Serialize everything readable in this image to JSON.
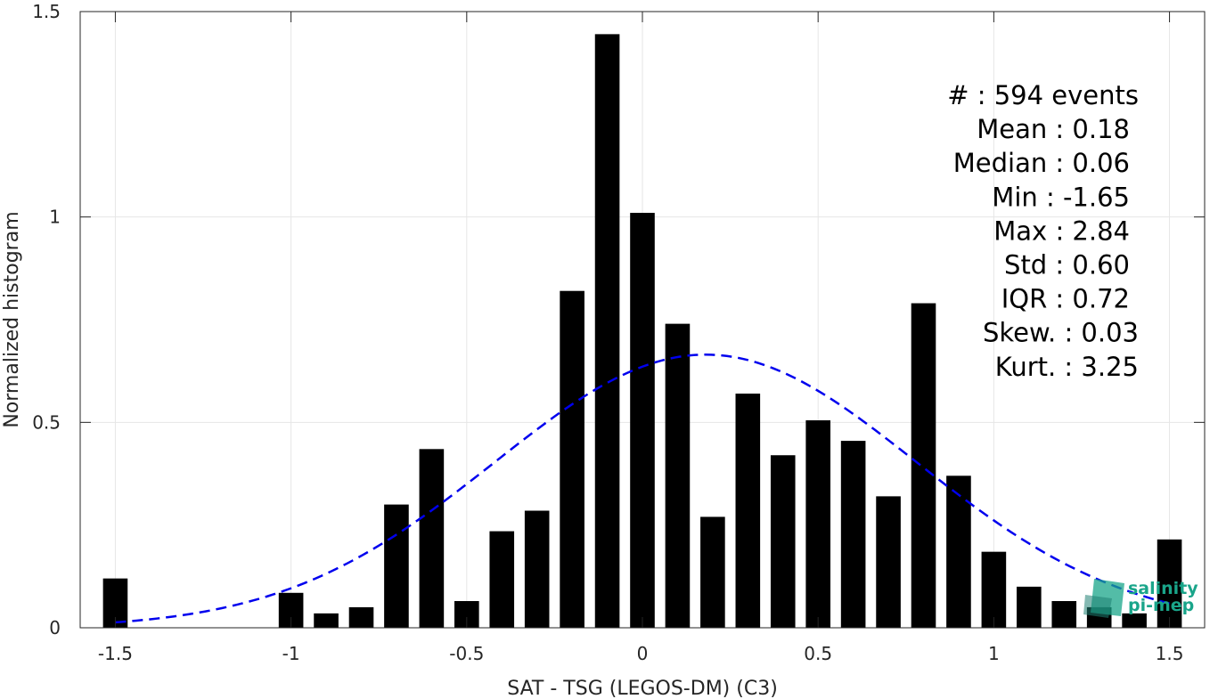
{
  "chart_data": {
    "type": "bar",
    "xlabel": "SAT - TSG (LEGOS-DM) (C3)",
    "ylabel": "Normalized histogram",
    "xlim": [
      -1.6,
      1.6
    ],
    "ylim": [
      0,
      1.5
    ],
    "x_ticks": [
      -1.5,
      -1,
      -0.5,
      0,
      0.5,
      1,
      1.5
    ],
    "x_tick_labels": [
      "-1.5",
      "-1",
      "-0.5",
      "0",
      "0.5",
      "1",
      "1.5"
    ],
    "y_ticks": [
      0,
      0.5,
      1,
      1.5
    ],
    "y_tick_labels": [
      "0",
      "0.5",
      "1",
      "1.5"
    ],
    "grid": true,
    "bar_width": 0.07,
    "bar_color": "#000000",
    "bins": [
      -1.5,
      -1.0,
      -0.9,
      -0.8,
      -0.7,
      -0.6,
      -0.5,
      -0.4,
      -0.3,
      -0.2,
      -0.1,
      0.0,
      0.1,
      0.2,
      0.3,
      0.4,
      0.5,
      0.6,
      0.7,
      0.8,
      0.9,
      1.0,
      1.1,
      1.2,
      1.3,
      1.4,
      1.5
    ],
    "values": [
      0.12,
      0.085,
      0.035,
      0.05,
      0.3,
      0.435,
      0.065,
      0.235,
      0.285,
      0.82,
      1.445,
      1.01,
      0.74,
      0.27,
      0.57,
      0.42,
      0.505,
      0.455,
      0.32,
      0.79,
      0.37,
      0.185,
      0.1,
      0.065,
      0.05,
      0.035,
      0.215
    ],
    "fit": {
      "type": "gaussian",
      "mean": 0.18,
      "std": 0.6,
      "x_range": [
        -1.5,
        1.5
      ],
      "color": "#0000ee",
      "style": "dashed"
    },
    "stats": [
      {
        "label": "#  : 594 events"
      },
      {
        "label": "Mean : 0.18"
      },
      {
        "label": "Median : 0.06"
      },
      {
        "label": "Min : -1.65"
      },
      {
        "label": "Max : 2.84"
      },
      {
        "label": "Std : 0.60"
      },
      {
        "label": "IQR : 0.72"
      },
      {
        "label": "Skew. : 0.03"
      },
      {
        "label": "Kurt. : 3.25"
      }
    ],
    "logo": {
      "line1": "salinity",
      "line2": "pi-mep",
      "color": "#1aa58a"
    }
  }
}
